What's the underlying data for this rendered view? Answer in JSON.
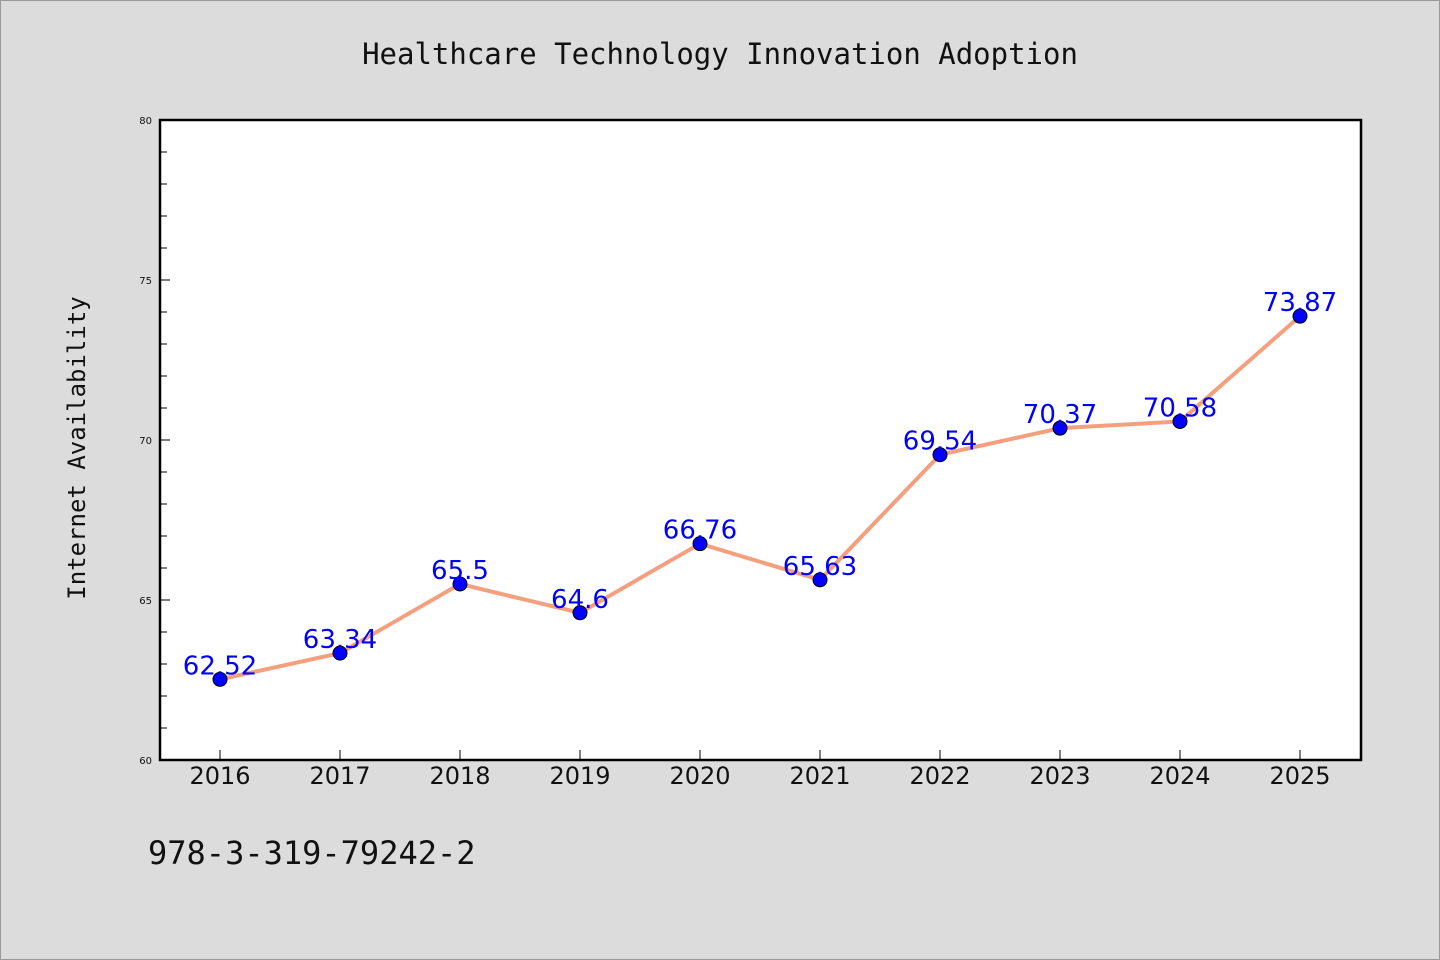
{
  "chart_data": {
    "type": "line",
    "title": "Healthcare Technology Innovation Adoption",
    "xlabel": "",
    "ylabel": "Internet Availability",
    "categories": [
      "2016",
      "2017",
      "2018",
      "2019",
      "2020",
      "2021",
      "2022",
      "2023",
      "2024",
      "2025"
    ],
    "series": [
      {
        "values": [
          62.52,
          63.34,
          65.5,
          64.6,
          66.76,
          65.63,
          69.54,
          70.37,
          70.58,
          73.87
        ],
        "data_labels": [
          "62.52",
          "63.34",
          "65.5",
          "64.6",
          "66.76",
          "65.63",
          "69.54",
          "70.37",
          "70.58",
          "73.87"
        ]
      }
    ],
    "ylim": [
      60,
      80
    ],
    "y_ticks": [
      "60",
      "65",
      "70",
      "75",
      "80"
    ],
    "grid": false,
    "legend": "none",
    "colors": {
      "line": "#f4a07f",
      "marker": "#0000ff",
      "data_label": "#0000ff",
      "plot_background": "#ffffff",
      "page_background": "#dcdcdc"
    }
  },
  "footer_note": "978-3-319-79242-2"
}
